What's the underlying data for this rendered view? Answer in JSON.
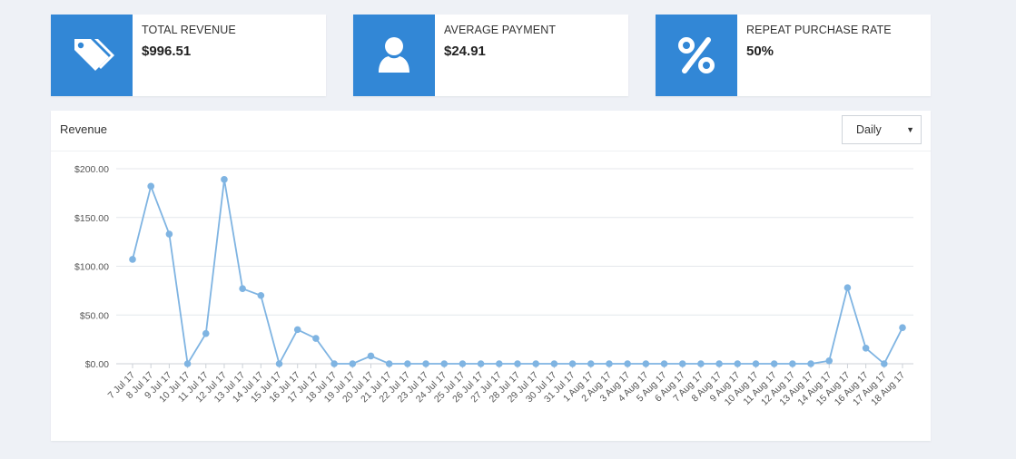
{
  "stats": [
    {
      "label": "TOTAL REVENUE",
      "value": "$996.51",
      "icon": "price-tags-icon"
    },
    {
      "label": "AVERAGE PAYMENT",
      "value": "$24.91",
      "icon": "user-icon"
    },
    {
      "label": "REPEAT PURCHASE RATE",
      "value": "50%",
      "icon": "percent-icon"
    }
  ],
  "panel": {
    "title": "Revenue",
    "period_selected": "Daily",
    "period_caret": "▼"
  },
  "colors": {
    "accent": "#3287d6",
    "line": "#7fb4e2"
  },
  "chart_data": {
    "type": "line",
    "title": "",
    "xlabel": "",
    "ylabel": "",
    "ylim": [
      0,
      200
    ],
    "yticks": [
      0,
      50,
      100,
      150,
      200
    ],
    "ytick_labels": [
      "$0.00",
      "$50.00",
      "$100.00",
      "$150.00",
      "$200.00"
    ],
    "grid": true,
    "legend": false,
    "categories": [
      "7 Jul 17",
      "8 Jul 17",
      "9 Jul 17",
      "10 Jul 17",
      "11 Jul 17",
      "12 Jul 17",
      "13 Jul 17",
      "14 Jul 17",
      "15 Jul 17",
      "16 Jul 17",
      "17 Jul 17",
      "18 Jul 17",
      "19 Jul 17",
      "20 Jul 17",
      "21 Jul 17",
      "22 Jul 17",
      "23 Jul 17",
      "24 Jul 17",
      "25 Jul 17",
      "26 Jul 17",
      "27 Jul 17",
      "28 Jul 17",
      "29 Jul 17",
      "30 Jul 17",
      "31 Jul 17",
      "1 Aug 17",
      "2 Aug 17",
      "3 Aug 17",
      "4 Aug 17",
      "5 Aug 17",
      "6 Aug 17",
      "7 Aug 17",
      "8 Aug 17",
      "9 Aug 17",
      "10 Aug 17",
      "11 Aug 17",
      "12 Aug 17",
      "13 Aug 17",
      "14 Aug 17",
      "15 Aug 17",
      "16 Aug 17",
      "17 Aug 17",
      "18 Aug 17"
    ],
    "values": [
      107,
      182,
      133,
      0,
      31,
      189,
      77,
      70,
      0,
      35,
      26,
      0,
      0,
      8,
      0,
      0,
      0,
      0,
      0,
      0,
      0,
      0,
      0,
      0,
      0,
      0,
      0,
      0,
      0,
      0,
      0,
      0,
      0,
      0,
      0,
      0,
      0,
      0,
      3,
      78,
      16,
      0,
      37
    ]
  }
}
